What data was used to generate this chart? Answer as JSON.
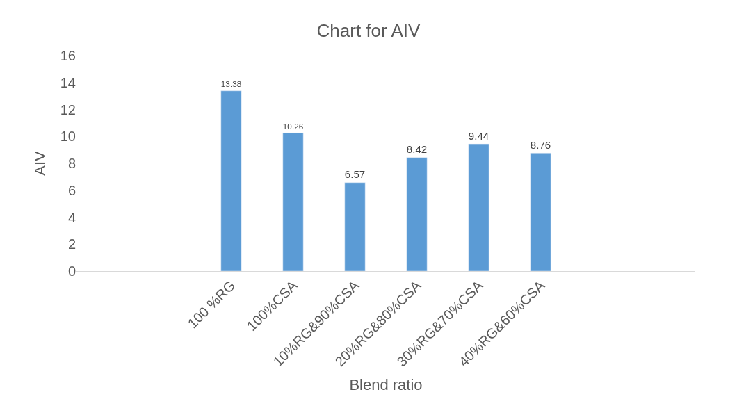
{
  "chart_data": {
    "type": "bar",
    "title": "Chart for AIV",
    "xlabel": "Blend ratio",
    "ylabel": "AIV",
    "categories": [
      null,
      null,
      "100 %RG",
      "100%CSA",
      "10%RG&90%CSA",
      "20%RG&80%CSA",
      "30%RG&70%CSA",
      "40%RG&60%CSA",
      null,
      null
    ],
    "values": [
      null,
      null,
      13.38,
      10.26,
      6.57,
      8.42,
      9.44,
      8.76,
      null,
      null
    ],
    "color": "#5b9bd5",
    "ylim": [
      0,
      16
    ],
    "yticks": [
      0,
      2,
      4,
      6,
      8,
      10,
      12,
      14,
      16
    ],
    "grid": false,
    "data_labels": true,
    "legend": false
  }
}
